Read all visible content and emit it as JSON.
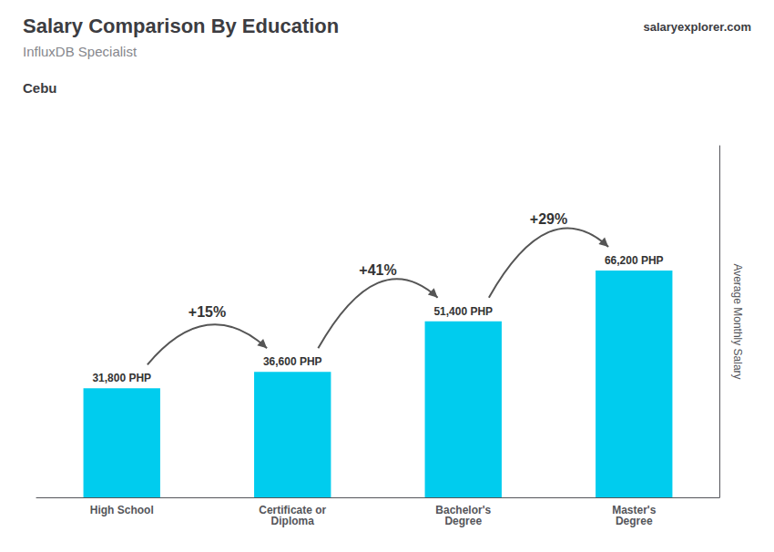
{
  "chart_data": {
    "type": "bar",
    "title": "Salary Comparison By Education",
    "subtitle": "InfluxDB Specialist",
    "location": "Cebu",
    "source": "salaryexplorer.com",
    "ylabel": "Average Monthly Salary",
    "categories": [
      "High School",
      "Certificate or\nDiploma",
      "Bachelor's\nDegree",
      "Master's\nDegree"
    ],
    "values": [
      31800,
      36600,
      51400,
      66200
    ],
    "value_labels": [
      "31,800 PHP",
      "36,600 PHP",
      "51,400 PHP",
      "66,200 PHP"
    ],
    "annotations": [
      "+15%",
      "+41%",
      "+29%"
    ],
    "color": "#00CCEE",
    "ylim": [
      0,
      102610
    ],
    "tick_labels": "x",
    "data_labels": true,
    "grid": false
  }
}
